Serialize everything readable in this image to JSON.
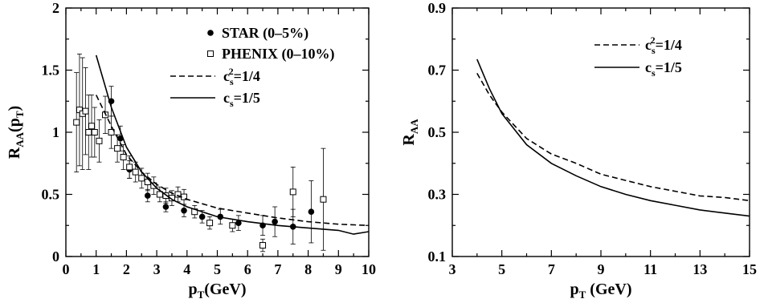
{
  "chart_data": [
    {
      "type": "scatter",
      "panel": "left",
      "xlabel": "p",
      "xlabel_sub": "T",
      "xlabel_unit": "(GeV)",
      "ylabel": "R",
      "ylabel_sub": "AA",
      "ylabel_arg": "(p",
      "ylabel_arg_sub": "T",
      "ylabel_close": ")",
      "xlim": [
        0,
        10
      ],
      "ylim": [
        0,
        2
      ],
      "xticks": [
        "0",
        "1",
        "2",
        "3",
        "4",
        "5",
        "6",
        "7",
        "8",
        "9",
        "10"
      ],
      "yticks": [
        "0",
        "0.5",
        "1",
        "1.5",
        "2"
      ],
      "grid": false,
      "legend_position": "top-right",
      "legend": [
        {
          "label": "STAR (0–5%)",
          "marker": "filled-circle"
        },
        {
          "label": "PHENIX (0–10%)",
          "marker": "open-square"
        },
        {
          "label_base": "c",
          "label_sub": "s",
          "label_sup": "2",
          "label_rest": "=1/4",
          "line": "dashed"
        },
        {
          "label_base": "c",
          "label_sub": "s",
          "label_rest": "=1/5",
          "line": "solid"
        }
      ],
      "series": [
        {
          "name": "STAR (0–5%)",
          "marker": "filled-circle",
          "points": [
            {
              "x": 1.5,
              "y": 1.25,
              "err": 0.12
            },
            {
              "x": 1.8,
              "y": 0.95,
              "err": 0.1
            },
            {
              "x": 2.1,
              "y": 0.7,
              "err": 0.07
            },
            {
              "x": 2.7,
              "y": 0.49,
              "err": 0.05
            },
            {
              "x": 3.3,
              "y": 0.4,
              "err": 0.04
            },
            {
              "x": 3.9,
              "y": 0.37,
              "err": 0.05
            },
            {
              "x": 4.5,
              "y": 0.32,
              "err": 0.05
            },
            {
              "x": 5.1,
              "y": 0.32,
              "err": 0.06
            },
            {
              "x": 5.7,
              "y": 0.27,
              "err": 0.06
            },
            {
              "x": 6.5,
              "y": 0.25,
              "err": 0.08
            },
            {
              "x": 6.9,
              "y": 0.28,
              "err": 0.12
            },
            {
              "x": 7.5,
              "y": 0.24,
              "err": 0.14
            },
            {
              "x": 8.1,
              "y": 0.36,
              "err": 0.25
            }
          ]
        },
        {
          "name": "PHENIX (0–10%)",
          "marker": "open-square",
          "points": [
            {
              "x": 0.35,
              "y": 1.08,
              "err": 0.4
            },
            {
              "x": 0.45,
              "y": 1.18,
              "err": 0.45
            },
            {
              "x": 0.55,
              "y": 1.15,
              "err": 0.45
            },
            {
              "x": 0.65,
              "y": 1.17,
              "err": 0.35
            },
            {
              "x": 0.75,
              "y": 1.0,
              "err": 0.3
            },
            {
              "x": 0.85,
              "y": 1.05,
              "err": 0.25
            },
            {
              "x": 0.95,
              "y": 1.0,
              "err": 0.2
            },
            {
              "x": 1.1,
              "y": 0.93,
              "err": 0.17
            },
            {
              "x": 1.3,
              "y": 1.14,
              "err": 0.15
            },
            {
              "x": 1.5,
              "y": 1.0,
              "err": 0.13
            },
            {
              "x": 1.7,
              "y": 0.87,
              "err": 0.11
            },
            {
              "x": 1.9,
              "y": 0.8,
              "err": 0.1
            },
            {
              "x": 2.1,
              "y": 0.72,
              "err": 0.09
            },
            {
              "x": 2.3,
              "y": 0.68,
              "err": 0.08
            },
            {
              "x": 2.5,
              "y": 0.63,
              "err": 0.08
            },
            {
              "x": 2.7,
              "y": 0.6,
              "err": 0.07
            },
            {
              "x": 2.9,
              "y": 0.57,
              "err": 0.07
            },
            {
              "x": 3.1,
              "y": 0.5,
              "err": 0.06
            },
            {
              "x": 3.3,
              "y": 0.49,
              "err": 0.06
            },
            {
              "x": 3.5,
              "y": 0.47,
              "err": 0.06
            },
            {
              "x": 3.7,
              "y": 0.5,
              "err": 0.06
            },
            {
              "x": 3.9,
              "y": 0.48,
              "err": 0.06
            },
            {
              "x": 4.25,
              "y": 0.36,
              "err": 0.05
            },
            {
              "x": 4.75,
              "y": 0.27,
              "err": 0.05
            },
            {
              "x": 5.5,
              "y": 0.25,
              "err": 0.05
            },
            {
              "x": 6.5,
              "y": 0.09,
              "err": 0.05
            },
            {
              "x": 7.5,
              "y": 0.52,
              "err": 0.2
            },
            {
              "x": 8.5,
              "y": 0.46,
              "err": 0.41
            }
          ]
        },
        {
          "name": "cs2=1/4",
          "line": "dashed",
          "points": [
            [
              1.0,
              1.3
            ],
            [
              1.5,
              1.05
            ],
            [
              2.0,
              0.82
            ],
            [
              2.5,
              0.68
            ],
            [
              3.0,
              0.58
            ],
            [
              3.5,
              0.51
            ],
            [
              4.0,
              0.46
            ],
            [
              5.0,
              0.39
            ],
            [
              6.0,
              0.35
            ],
            [
              7.0,
              0.31
            ],
            [
              8.0,
              0.28
            ],
            [
              9.0,
              0.26
            ],
            [
              10.0,
              0.25
            ]
          ]
        },
        {
          "name": "cs2=1/5",
          "line": "solid",
          "points": [
            [
              1.0,
              1.62
            ],
            [
              1.5,
              1.2
            ],
            [
              2.0,
              0.88
            ],
            [
              2.5,
              0.68
            ],
            [
              3.0,
              0.55
            ],
            [
              3.5,
              0.46
            ],
            [
              4.0,
              0.4
            ],
            [
              5.0,
              0.32
            ],
            [
              6.0,
              0.28
            ],
            [
              7.0,
              0.25
            ],
            [
              8.0,
              0.23
            ],
            [
              9.0,
              0.21
            ],
            [
              9.5,
              0.18
            ],
            [
              10.0,
              0.2
            ]
          ]
        }
      ]
    },
    {
      "type": "line",
      "panel": "right",
      "xlabel": "p",
      "xlabel_sub": "T",
      "xlabel_unit": " (GeV)",
      "ylabel": "R",
      "ylabel_sub": "AA",
      "xlim": [
        3,
        15
      ],
      "ylim": [
        0.1,
        0.9
      ],
      "xticks": [
        "3",
        "5",
        "7",
        "9",
        "11",
        "13",
        "15"
      ],
      "yticks": [
        "0.1",
        "0.3",
        "0.5",
        "0.7",
        "0.9"
      ],
      "grid": false,
      "legend_position": "top-right",
      "legend": [
        {
          "label_base": "c",
          "label_sub": "s",
          "label_sup": "2",
          "label_rest": "=1/4",
          "line": "dashed"
        },
        {
          "label_base": "c",
          "label_sub": "s",
          "label_rest": "=1/5",
          "line": "solid"
        }
      ],
      "series": [
        {
          "name": "cs2=1/4",
          "line": "dashed",
          "points": [
            [
              4,
              0.69
            ],
            [
              4.5,
              0.62
            ],
            [
              5,
              0.565
            ],
            [
              6,
              0.48
            ],
            [
              7,
              0.43
            ],
            [
              8,
              0.4
            ],
            [
              9,
              0.365
            ],
            [
              10,
              0.345
            ],
            [
              11,
              0.325
            ],
            [
              12,
              0.31
            ],
            [
              13,
              0.295
            ],
            [
              14,
              0.29
            ],
            [
              15,
              0.28
            ]
          ]
        },
        {
          "name": "cs2=1/5",
          "line": "solid",
          "points": [
            [
              4,
              0.735
            ],
            [
              4.5,
              0.64
            ],
            [
              5,
              0.56
            ],
            [
              6,
              0.46
            ],
            [
              7,
              0.4
            ],
            [
              8,
              0.36
            ],
            [
              9,
              0.325
            ],
            [
              10,
              0.3
            ],
            [
              11,
              0.28
            ],
            [
              12,
              0.265
            ],
            [
              13,
              0.25
            ],
            [
              14,
              0.24
            ],
            [
              15,
              0.23
            ]
          ]
        }
      ]
    }
  ]
}
